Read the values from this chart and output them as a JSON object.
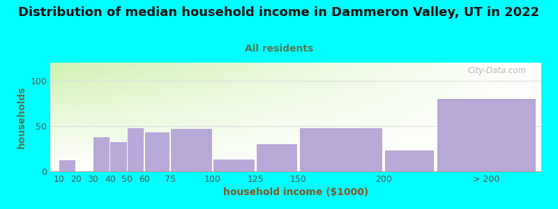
{
  "title": "Distribution of median household income in Dammeron Valley, UT in 2022",
  "subtitle": "All residents",
  "xlabel": "household income ($1000)",
  "ylabel": "households",
  "fig_bg_color": "#00FFFF",
  "plot_bg_top_left": "#d4edb0",
  "plot_bg_top_right": "#f0f0f0",
  "plot_bg_bottom": "#ffffff",
  "bar_color": "#b8a8d8",
  "watermark": "City-Data.com",
  "categories": [
    "10",
    "20",
    "30",
    "40",
    "50",
    "60",
    "75",
    "100",
    "125",
    "150",
    "200",
    "> 200"
  ],
  "values": [
    12,
    0,
    38,
    32,
    48,
    43,
    47,
    13,
    30,
    48,
    23,
    80
  ],
  "cat_left_edges": [
    10,
    20,
    30,
    40,
    50,
    60,
    75,
    100,
    125,
    150,
    200,
    230
  ],
  "cat_widths": [
    10,
    10,
    10,
    10,
    10,
    15,
    25,
    25,
    25,
    50,
    30,
    60
  ],
  "tick_positions": [
    10,
    20,
    30,
    40,
    50,
    60,
    75,
    100,
    125,
    150,
    200,
    260
  ],
  "yticks": [
    0,
    50,
    100
  ],
  "ylim": [
    0,
    120
  ],
  "xlim_left": 5,
  "xlim_right": 292,
  "title_fontsize": 13,
  "subtitle_fontsize": 10,
  "axis_label_fontsize": 10,
  "tick_fontsize": 9,
  "title_color": "#111111",
  "subtitle_color": "#557755",
  "ylabel_color": "#557755",
  "xlabel_color": "#885522",
  "tick_color": "#555555",
  "watermark_color": "#aaaaaa",
  "grid_color": "#dddddd"
}
